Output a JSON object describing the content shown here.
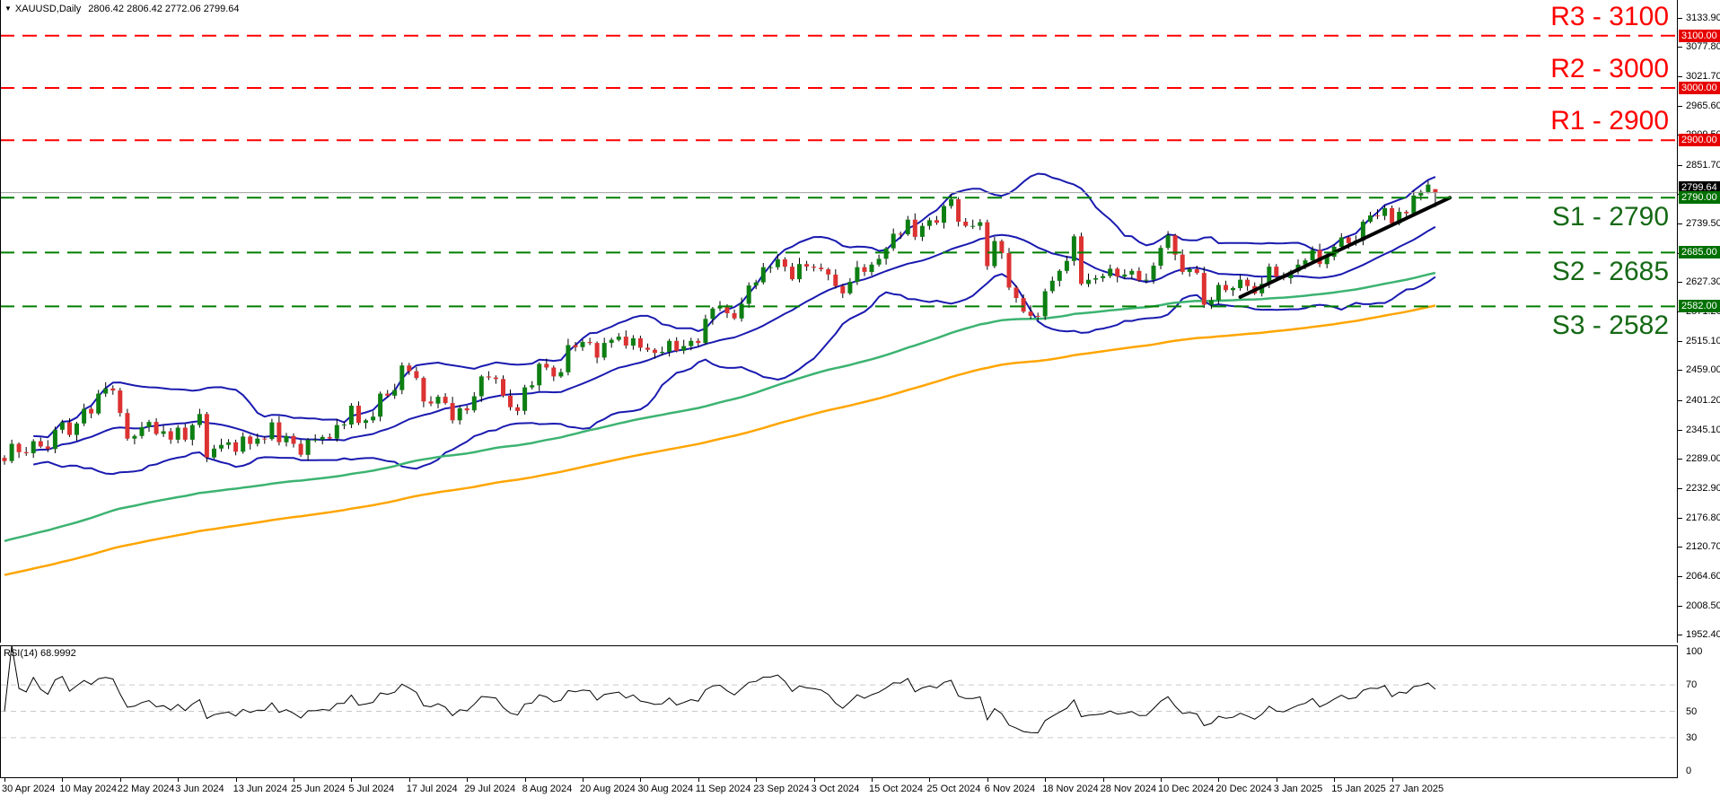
{
  "header": {
    "dropdown_icon": "▼",
    "symbol": "XAUUSD,Daily",
    "ohlc": "2806.42 2806.42 2772.06 2799.64"
  },
  "colors": {
    "bull": "#0e7f13",
    "bear": "#dc3232",
    "wick": "#000000",
    "bollinger": "#1a1ab0",
    "ma_fast": "#3cb371",
    "ma_slow": "#ffa500",
    "resistance": "#ff0000",
    "support": "#007f00",
    "resistance_text": "#ff0000",
    "support_text": "#156915",
    "badge_red": "#e60000",
    "badge_green": "#007000",
    "badge_black": "#000000",
    "price_line": "#a0a0a0",
    "trendline": "#000000",
    "rsi_line": "#000000",
    "rsi_grid": "#c9c9c9",
    "border": "#000000"
  },
  "price_axis": {
    "ticks": [
      "3133.90",
      "3077.80",
      "3021.70",
      "2965.60",
      "2909.50",
      "2851.70",
      "2795.60",
      "2739.50",
      "2683.40",
      "2627.30",
      "2571.20",
      "2515.10",
      "2459.00",
      "2401.20",
      "2345.10",
      "2289.00",
      "2232.90",
      "2176.80",
      "2120.70",
      "2064.60",
      "2008.50",
      "1952.40"
    ],
    "badges": [
      {
        "text": "3100.00",
        "price": 3100.0,
        "kind": "resistance"
      },
      {
        "text": "3000.00",
        "price": 3000.0,
        "kind": "resistance"
      },
      {
        "text": "2900.00",
        "price": 2900.0,
        "kind": "resistance"
      },
      {
        "text": "2799.64",
        "price": 2799.64,
        "kind": "current"
      },
      {
        "text": "2790.00",
        "price": 2790.0,
        "kind": "support"
      },
      {
        "text": "2685.00",
        "price": 2685.0,
        "kind": "support"
      },
      {
        "text": "2582.00",
        "price": 2582.0,
        "kind": "support"
      }
    ]
  },
  "levels": [
    {
      "id": "r3",
      "label": "R3 - 3100",
      "price": 3100,
      "kind": "resistance"
    },
    {
      "id": "r2",
      "label": "R2 - 3000",
      "price": 3000,
      "kind": "resistance"
    },
    {
      "id": "r1",
      "label": "R1 - 2900",
      "price": 2900,
      "kind": "resistance"
    },
    {
      "id": "s1",
      "label": "S1 - 2790",
      "price": 2790,
      "kind": "support"
    },
    {
      "id": "s2",
      "label": "S2 - 2685",
      "price": 2685,
      "kind": "support"
    },
    {
      "id": "s3",
      "label": "S3 - 2582",
      "price": 2582,
      "kind": "support"
    }
  ],
  "current_price_line": {
    "price": 2799.64
  },
  "rsi_panel": {
    "label": "RSI(14) 68.9992",
    "period": 14,
    "value": "68.9992",
    "scale_labels": [
      100,
      70,
      50,
      30,
      0
    ],
    "grid_levels": [
      70,
      50,
      30
    ],
    "range": [
      0,
      100
    ]
  },
  "chart_data": {
    "type": "candlestick",
    "title": "XAUUSD,Daily",
    "ylim": [
      1952.4,
      3133.9
    ],
    "grid": false,
    "x_labels": [
      "30 Apr 2024",
      "10 May 2024",
      "22 May 2024",
      "3 Jun 2024",
      "13 Jun 2024",
      "25 Jun 2024",
      "5 Jul 2024",
      "17 Jul 2024",
      "29 Jul 2024",
      "8 Aug 2024",
      "20 Aug 2024",
      "30 Aug 2024",
      "11 Sep 2024",
      "23 Sep 2024",
      "3 Oct 2024",
      "15 Oct 2024",
      "25 Oct 2024",
      "6 Nov 2024",
      "18 Nov 2024",
      "28 Nov 2024",
      "10 Dec 2024",
      "20 Dec 2024",
      "3 Jan 2025",
      "15 Jan 2025",
      "27 Jan 2025"
    ],
    "bars_per_label": 8,
    "candles": [
      [
        2292,
        2297,
        2279,
        2286
      ],
      [
        2286,
        2327,
        2282,
        2319
      ],
      [
        2319,
        2322,
        2292,
        2303
      ],
      [
        2303,
        2313,
        2296,
        2301
      ],
      [
        2301,
        2328,
        2292,
        2324
      ],
      [
        2324,
        2331,
        2311,
        2314
      ],
      [
        2314,
        2326,
        2303,
        2309
      ],
      [
        2309,
        2352,
        2301,
        2346
      ],
      [
        2346,
        2365,
        2339,
        2360
      ],
      [
        2360,
        2368,
        2332,
        2336
      ],
      [
        2336,
        2361,
        2325,
        2358
      ],
      [
        2358,
        2396,
        2353,
        2386
      ],
      [
        2386,
        2390,
        2368,
        2377
      ],
      [
        2377,
        2422,
        2374,
        2415
      ],
      [
        2415,
        2437,
        2409,
        2425
      ],
      [
        2425,
        2431,
        2413,
        2421
      ],
      [
        2421,
        2426,
        2371,
        2378
      ],
      [
        2378,
        2386,
        2325,
        2329
      ],
      [
        2329,
        2337,
        2318,
        2334
      ],
      [
        2334,
        2361,
        2329,
        2351
      ],
      [
        2351,
        2365,
        2342,
        2361
      ],
      [
        2361,
        2368,
        2335,
        2338
      ],
      [
        2338,
        2355,
        2332,
        2343
      ],
      [
        2343,
        2349,
        2319,
        2327
      ],
      [
        2327,
        2355,
        2320,
        2350
      ],
      [
        2350,
        2358,
        2323,
        2327
      ],
      [
        2327,
        2358,
        2316,
        2355
      ],
      [
        2355,
        2386,
        2350,
        2376
      ],
      [
        2376,
        2380,
        2284,
        2293
      ],
      [
        2293,
        2317,
        2290,
        2310
      ],
      [
        2310,
        2329,
        2304,
        2317
      ],
      [
        2317,
        2328,
        2309,
        2322
      ],
      [
        2322,
        2327,
        2297,
        2304
      ],
      [
        2304,
        2341,
        2300,
        2333
      ],
      [
        2333,
        2336,
        2308,
        2319
      ],
      [
        2319,
        2339,
        2314,
        2329
      ],
      [
        2329,
        2333,
        2319,
        2328
      ],
      [
        2328,
        2367,
        2325,
        2360
      ],
      [
        2360,
        2372,
        2316,
        2322
      ],
      [
        2322,
        2340,
        2314,
        2334
      ],
      [
        2334,
        2339,
        2312,
        2319
      ],
      [
        2319,
        2327,
        2294,
        2298
      ],
      [
        2298,
        2330,
        2287,
        2327
      ],
      [
        2327,
        2337,
        2322,
        2327
      ],
      [
        2327,
        2336,
        2318,
        2332
      ],
      [
        2332,
        2339,
        2326,
        2329
      ],
      [
        2329,
        2367,
        2323,
        2355
      ],
      [
        2355,
        2362,
        2347,
        2356
      ],
      [
        2356,
        2397,
        2349,
        2392
      ],
      [
        2392,
        2400,
        2355,
        2359
      ],
      [
        2359,
        2367,
        2348,
        2364
      ],
      [
        2364,
        2381,
        2359,
        2371
      ],
      [
        2371,
        2419,
        2362,
        2415
      ],
      [
        2415,
        2422,
        2408,
        2411
      ],
      [
        2411,
        2434,
        2405,
        2422
      ],
      [
        2422,
        2475,
        2414,
        2469
      ],
      [
        2469,
        2474,
        2451,
        2458
      ],
      [
        2458,
        2466,
        2441,
        2445
      ],
      [
        2445,
        2448,
        2389,
        2400
      ],
      [
        2400,
        2410,
        2391,
        2396
      ],
      [
        2396,
        2413,
        2387,
        2409
      ],
      [
        2409,
        2416,
        2394,
        2397
      ],
      [
        2397,
        2409,
        2358,
        2364
      ],
      [
        2364,
        2393,
        2356,
        2387
      ],
      [
        2387,
        2392,
        2376,
        2383
      ],
      [
        2383,
        2418,
        2379,
        2410
      ],
      [
        2410,
        2451,
        2399,
        2448
      ],
      [
        2448,
        2458,
        2441,
        2446
      ],
      [
        2446,
        2450,
        2434,
        2443
      ],
      [
        2443,
        2450,
        2408,
        2411
      ],
      [
        2411,
        2423,
        2383,
        2389
      ],
      [
        2389,
        2395,
        2374,
        2382
      ],
      [
        2382,
        2432,
        2375,
        2427
      ],
      [
        2427,
        2439,
        2423,
        2431
      ],
      [
        2431,
        2475,
        2420,
        2472
      ],
      [
        2472,
        2482,
        2460,
        2465
      ],
      [
        2465,
        2469,
        2439,
        2448
      ],
      [
        2448,
        2463,
        2445,
        2456
      ],
      [
        2456,
        2520,
        2450,
        2508
      ],
      [
        2508,
        2514,
        2496,
        2504
      ],
      [
        2504,
        2519,
        2497,
        2514
      ],
      [
        2514,
        2522,
        2508,
        2512
      ],
      [
        2512,
        2515,
        2473,
        2484
      ],
      [
        2484,
        2522,
        2479,
        2512
      ],
      [
        2512,
        2522,
        2503,
        2518
      ],
      [
        2518,
        2531,
        2515,
        2524
      ],
      [
        2524,
        2536,
        2501,
        2507
      ],
      [
        2507,
        2527,
        2499,
        2521
      ],
      [
        2521,
        2526,
        2496,
        2503
      ],
      [
        2503,
        2511,
        2495,
        2499
      ],
      [
        2499,
        2502,
        2482,
        2493
      ],
      [
        2493,
        2505,
        2488,
        2495
      ],
      [
        2495,
        2520,
        2486,
        2516
      ],
      [
        2516,
        2523,
        2494,
        2497
      ],
      [
        2497,
        2518,
        2491,
        2506
      ],
      [
        2506,
        2522,
        2498,
        2516
      ],
      [
        2516,
        2521,
        2505,
        2512
      ],
      [
        2512,
        2566,
        2508,
        2558
      ],
      [
        2558,
        2581,
        2547,
        2578
      ],
      [
        2578,
        2592,
        2573,
        2582
      ],
      [
        2582,
        2586,
        2560,
        2569
      ],
      [
        2569,
        2576,
        2556,
        2559
      ],
      [
        2559,
        2599,
        2553,
        2587
      ],
      [
        2587,
        2628,
        2579,
        2622
      ],
      [
        2622,
        2633,
        2615,
        2628
      ],
      [
        2628,
        2665,
        2624,
        2657
      ],
      [
        2657,
        2660,
        2646,
        2657
      ],
      [
        2657,
        2682,
        2652,
        2672
      ],
      [
        2672,
        2676,
        2649,
        2658
      ],
      [
        2658,
        2665,
        2631,
        2634
      ],
      [
        2634,
        2675,
        2628,
        2663
      ],
      [
        2663,
        2669,
        2650,
        2658
      ],
      [
        2658,
        2663,
        2649,
        2656
      ],
      [
        2656,
        2664,
        2649,
        2653
      ],
      [
        2653,
        2656,
        2632,
        2643
      ],
      [
        2643,
        2653,
        2616,
        2621
      ],
      [
        2621,
        2625,
        2598,
        2607
      ],
      [
        2607,
        2636,
        2604,
        2629
      ],
      [
        2629,
        2669,
        2623,
        2657
      ],
      [
        2657,
        2663,
        2640,
        2648
      ],
      [
        2648,
        2667,
        2641,
        2662
      ],
      [
        2662,
        2681,
        2658,
        2673
      ],
      [
        2673,
        2696,
        2662,
        2693
      ],
      [
        2693,
        2731,
        2688,
        2721
      ],
      [
        2721,
        2725,
        2711,
        2720
      ],
      [
        2720,
        2755,
        2717,
        2748
      ],
      [
        2748,
        2760,
        2709,
        2715
      ],
      [
        2715,
        2742,
        2707,
        2736
      ],
      [
        2736,
        2752,
        2729,
        2747
      ],
      [
        2747,
        2755,
        2738,
        2742
      ],
      [
        2742,
        2777,
        2731,
        2774
      ],
      [
        2774,
        2797,
        2769,
        2787
      ],
      [
        2787,
        2791,
        2735,
        2744
      ],
      [
        2744,
        2751,
        2733,
        2736
      ],
      [
        2736,
        2748,
        2730,
        2736
      ],
      [
        2736,
        2749,
        2728,
        2743
      ],
      [
        2743,
        2748,
        2652,
        2659
      ],
      [
        2659,
        2715,
        2655,
        2707
      ],
      [
        2707,
        2710,
        2673,
        2684
      ],
      [
        2684,
        2694,
        2613,
        2618
      ],
      [
        2618,
        2622,
        2589,
        2598
      ],
      [
        2598,
        2605,
        2569,
        2572
      ],
      [
        2572,
        2584,
        2558,
        2564
      ],
      [
        2564,
        2570,
        2555,
        2563
      ],
      [
        2563,
        2616,
        2556,
        2611
      ],
      [
        2611,
        2639,
        2607,
        2631
      ],
      [
        2631,
        2653,
        2620,
        2650
      ],
      [
        2650,
        2679,
        2645,
        2669
      ],
      [
        2669,
        2720,
        2660,
        2716
      ],
      [
        2716,
        2723,
        2622,
        2625
      ],
      [
        2625,
        2645,
        2619,
        2633
      ],
      [
        2633,
        2642,
        2625,
        2636
      ],
      [
        2636,
        2645,
        2629,
        2640
      ],
      [
        2640,
        2662,
        2636,
        2654
      ],
      [
        2654,
        2657,
        2628,
        2639
      ],
      [
        2639,
        2653,
        2634,
        2643
      ],
      [
        2643,
        2654,
        2634,
        2650
      ],
      [
        2650,
        2657,
        2629,
        2632
      ],
      [
        2632,
        2645,
        2626,
        2633
      ],
      [
        2633,
        2666,
        2625,
        2660
      ],
      [
        2660,
        2699,
        2653,
        2694
      ],
      [
        2694,
        2726,
        2690,
        2718
      ],
      [
        2718,
        2721,
        2670,
        2681
      ],
      [
        2681,
        2691,
        2643,
        2648
      ],
      [
        2648,
        2657,
        2639,
        2653
      ],
      [
        2653,
        2660,
        2643,
        2646
      ],
      [
        2646,
        2658,
        2579,
        2585
      ],
      [
        2585,
        2600,
        2577,
        2594
      ],
      [
        2594,
        2628,
        2587,
        2623
      ],
      [
        2623,
        2631,
        2609,
        2613
      ],
      [
        2613,
        2620,
        2602,
        2617
      ],
      [
        2617,
        2643,
        2612,
        2633
      ],
      [
        2633,
        2637,
        2612,
        2621
      ],
      [
        2621,
        2628,
        2604,
        2607
      ],
      [
        2607,
        2637,
        2601,
        2625
      ],
      [
        2625,
        2664,
        2617,
        2658
      ],
      [
        2658,
        2663,
        2632,
        2639
      ],
      [
        2639,
        2647,
        2632,
        2636
      ],
      [
        2636,
        2652,
        2625,
        2649
      ],
      [
        2649,
        2672,
        2644,
        2662
      ],
      [
        2662,
        2674,
        2653,
        2670
      ],
      [
        2670,
        2697,
        2667,
        2690
      ],
      [
        2690,
        2702,
        2657,
        2663
      ],
      [
        2663,
        2683,
        2655,
        2677
      ],
      [
        2677,
        2701,
        2670,
        2696
      ],
      [
        2696,
        2722,
        2692,
        2714
      ],
      [
        2714,
        2717,
        2692,
        2703
      ],
      [
        2703,
        2718,
        2698,
        2708
      ],
      [
        2708,
        2748,
        2699,
        2744
      ],
      [
        2744,
        2763,
        2741,
        2756
      ],
      [
        2756,
        2768,
        2749,
        2755
      ],
      [
        2755,
        2776,
        2747,
        2770
      ],
      [
        2770,
        2775,
        2734,
        2741
      ],
      [
        2741,
        2771,
        2737,
        2763
      ],
      [
        2763,
        2766,
        2749,
        2760
      ],
      [
        2760,
        2804,
        2755,
        2794
      ],
      [
        2794,
        2805,
        2785,
        2801
      ],
      [
        2801,
        2822,
        2798,
        2815
      ],
      [
        2806.42,
        2806.42,
        2772.06,
        2799.64
      ]
    ],
    "overlays": [
      {
        "name": "Bollinger Bands",
        "period": 20,
        "deviation": 2
      },
      {
        "name": "MA fast green",
        "type": "ema",
        "k": 0.02,
        "seed": 2130
      },
      {
        "name": "MA slow orange",
        "type": "ema",
        "k": 0.013,
        "seed": 2065
      }
    ],
    "trendline": {
      "from_bar": 171,
      "from_price": 2600,
      "to_bar": 200,
      "to_price": 2790
    },
    "support_resistance": [
      3100,
      3000,
      2900,
      2790,
      2685,
      2582
    ],
    "rsi": {
      "period": 14,
      "last_value": 68.9992
    }
  }
}
